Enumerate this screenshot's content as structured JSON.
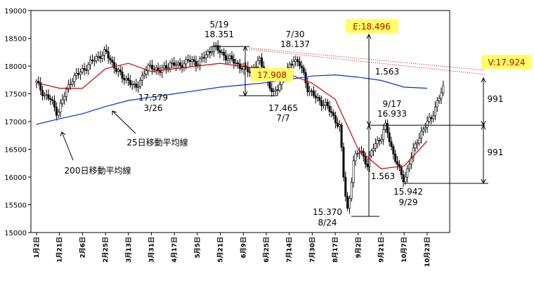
{
  "chart_data": {
    "type": "candlestick",
    "y_axis": {
      "min": 15000,
      "max": 19000,
      "step": 500,
      "tick_labels": [
        "15000",
        "15500",
        "16000",
        "16500",
        "17000",
        "17500",
        "18000",
        "18500",
        "19000"
      ]
    },
    "x_axis": {
      "tick_labels": [
        "1月2日",
        "1月21日",
        "2月6日",
        "2月25日",
        "3月13日",
        "3月31日",
        "4月17日",
        "5月5日",
        "5月21日",
        "6月9日",
        "6月25日",
        "7月14日",
        "7月30日",
        "8月17日",
        "9月2日",
        "9月21日",
        "10月7日",
        "10月23日"
      ]
    },
    "series": [
      {
        "name": "25日移動平均線",
        "color": "#cc0000",
        "points": [
          [
            "1月2日",
            17700
          ],
          [
            "1月21日",
            17600
          ],
          [
            "2月6日",
            17600
          ],
          [
            "2月25日",
            17950
          ],
          [
            "3月13日",
            18050
          ],
          [
            "3月31日",
            17900
          ],
          [
            "4月17日",
            17950
          ],
          [
            "5月5日",
            18000
          ],
          [
            "5月21日",
            18050
          ],
          [
            "6月9日",
            17990
          ],
          [
            "6月25日",
            17950
          ],
          [
            "7月14日",
            17850
          ],
          [
            "7月30日",
            17690
          ],
          [
            "8月17日",
            17400
          ],
          [
            "9月2日",
            16500
          ],
          [
            "9月21日",
            16150
          ],
          [
            "10月7日",
            16200
          ],
          [
            "10月23日",
            16650
          ]
        ]
      },
      {
        "name": "200日移動平均線",
        "color": "#0033cc",
        "points": [
          [
            "1月2日",
            16950
          ],
          [
            "1月21日",
            17050
          ],
          [
            "2月6日",
            17140
          ],
          [
            "2月25日",
            17270
          ],
          [
            "3月13日",
            17380
          ],
          [
            "3月31日",
            17440
          ],
          [
            "4月17日",
            17500
          ],
          [
            "5月5日",
            17560
          ],
          [
            "5月21日",
            17620
          ],
          [
            "6月9日",
            17660
          ],
          [
            "6月25日",
            17700
          ],
          [
            "7月14日",
            17760
          ],
          [
            "7月30日",
            17820
          ],
          [
            "8月17日",
            17840
          ],
          [
            "9月2日",
            17800
          ],
          [
            "9月21日",
            17740
          ],
          [
            "10月7日",
            17620
          ],
          [
            "10月23日",
            17600
          ]
        ]
      }
    ],
    "annotations": [
      {
        "label": "5/19",
        "value": "18.351"
      },
      {
        "label": "7/30",
        "value": "18.137"
      },
      {
        "label": "17.579",
        "value": "3/26"
      },
      {
        "label": "17.465",
        "value": "7/7"
      },
      {
        "label": "9/17",
        "value": "16.933"
      },
      {
        "label": "15.942",
        "value": "9/29"
      },
      {
        "label": "15.370",
        "value": "8/24"
      }
    ],
    "boxed_values": {
      "e_value": "E:18.496",
      "v_value": "V:17.924",
      "mid_value": "17.908"
    },
    "diffs": [
      "1.563",
      "1.563",
      "991",
      "991"
    ],
    "labels": {
      "ma25": "25日移動平均線",
      "ma200": "200日移動平均線"
    }
  }
}
